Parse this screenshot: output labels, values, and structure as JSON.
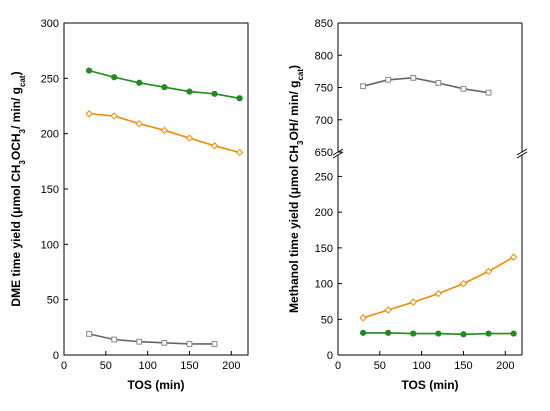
{
  "chart_data": [
    {
      "type": "line",
      "xlabel": "TOS (min)",
      "ylabel_parts": [
        "DME time yield (μmol CH",
        "3",
        "OCH",
        "3",
        "/ min/ g",
        "cat",
        ")"
      ],
      "xlim": [
        0,
        220
      ],
      "ylim": [
        0,
        300
      ],
      "xticks": [
        0,
        50,
        100,
        150,
        200
      ],
      "yticks": [
        0,
        50,
        100,
        150,
        200,
        250,
        300
      ],
      "grid": false,
      "series": [
        {
          "x": [
            30,
            60,
            90,
            120,
            150,
            180,
            210
          ],
          "y": [
            257,
            251,
            246,
            242,
            238,
            236,
            232
          ],
          "color": "#1e8c1e",
          "line_color": "#1e8c1e",
          "marker": "circle",
          "marker_fill": "#1e8c1e"
        },
        {
          "x": [
            30,
            60,
            90,
            120,
            150,
            180,
            210
          ],
          "y": [
            218,
            216,
            209,
            203,
            196,
            189,
            183
          ],
          "color": "#f08c00",
          "line_color": "#f08c00",
          "marker": "diamond",
          "marker_fill": "#ffffff"
        },
        {
          "x": [
            30,
            60,
            90,
            120,
            150,
            180
          ],
          "y": [
            19,
            14,
            12,
            11,
            10,
            10
          ],
          "color": "#888888",
          "line_color": "#666666",
          "marker": "square",
          "marker_fill": "#ffffff"
        }
      ]
    },
    {
      "type": "line",
      "xlabel": "TOS (min)",
      "ylabel_parts": [
        "Methanol time yield (μmol CH",
        "3",
        "OH/ min/ g",
        "cat",
        ")"
      ],
      "xlim": [
        0,
        220
      ],
      "broken_y_axis": true,
      "upper_ylim": [
        650,
        850
      ],
      "upper_yticks": [
        650,
        700,
        750,
        800,
        850
      ],
      "lower_ylim": [
        0,
        280
      ],
      "lower_yticks": [
        0,
        50,
        100,
        150,
        200,
        250
      ],
      "xticks": [
        0,
        50,
        100,
        150,
        200
      ],
      "grid": false,
      "series": [
        {
          "x": [
            30,
            60,
            90,
            120,
            150,
            180
          ],
          "y": [
            752,
            762,
            765,
            757,
            748,
            742
          ],
          "color": "#888888",
          "line_color": "#666666",
          "marker": "square",
          "marker_fill": "#ffffff"
        },
        {
          "x": [
            30,
            60,
            90,
            120,
            150,
            180,
            210
          ],
          "y": [
            52,
            63,
            74,
            86,
            100,
            117,
            137
          ],
          "color": "#f08c00",
          "line_color": "#f08c00",
          "marker": "diamond",
          "marker_fill": "#ffffff"
        },
        {
          "x": [
            30,
            60,
            90,
            120,
            150,
            180,
            210
          ],
          "y": [
            31,
            31,
            30,
            30,
            29,
            30,
            30
          ],
          "color": "#1e8c1e",
          "line_color": "#1e8c1e",
          "marker": "circle",
          "marker_fill": "#1e8c1e"
        }
      ]
    }
  ]
}
